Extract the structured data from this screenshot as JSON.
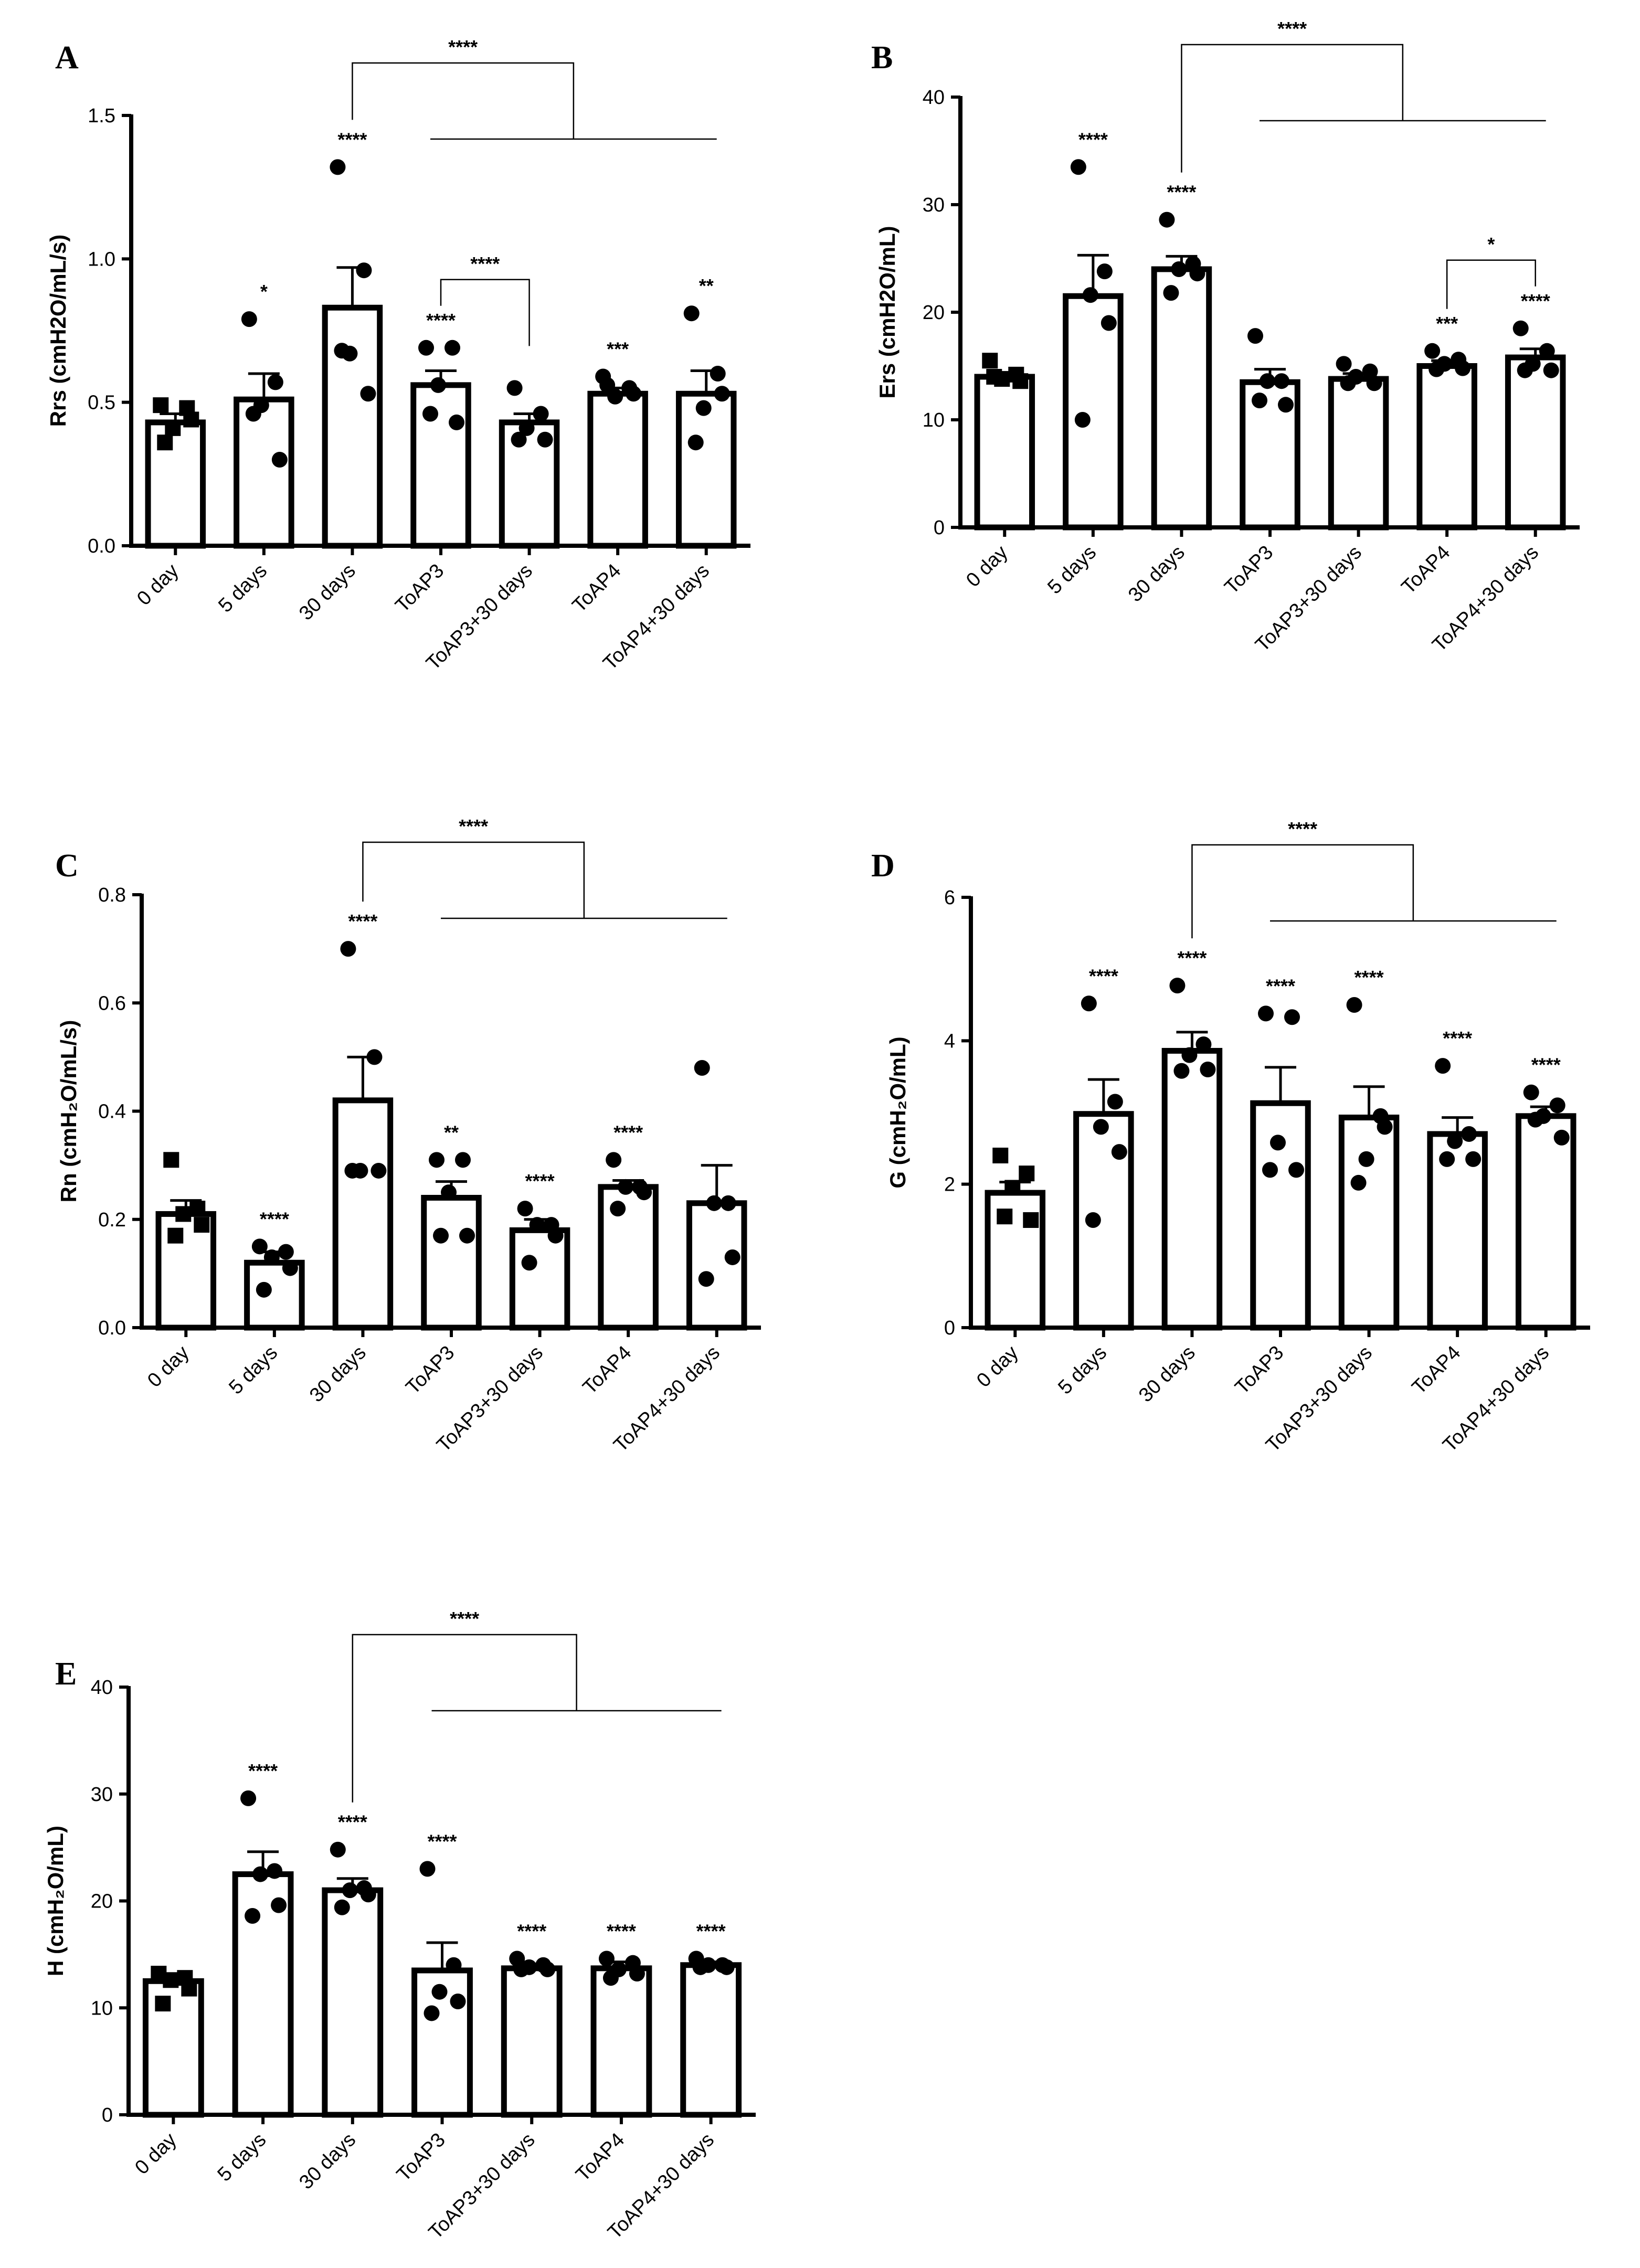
{
  "chart_data": [
    {
      "type": "bar",
      "panel": "A",
      "ylabel": "Rrs (cmH2O/mL/s)",
      "ylim": [
        0,
        1.5
      ],
      "yticks": [
        0.0,
        0.5,
        1.0,
        1.5
      ],
      "ytick_labels": [
        "0.0",
        "0.5",
        "1.0",
        "1.5"
      ],
      "categories": [
        "0 day",
        "5 days",
        "30 days",
        "ToAP3",
        "ToAP3+30 days",
        "ToAP4",
        "ToAP4+30 days"
      ],
      "means": [
        0.43,
        0.51,
        0.83,
        0.56,
        0.43,
        0.53,
        0.53
      ],
      "sem": [
        0.03,
        0.09,
        0.14,
        0.05,
        0.03,
        0.02,
        0.08
      ],
      "points": [
        [
          0.49,
          0.48,
          0.41,
          0.44,
          0.36
        ],
        [
          0.79,
          0.57,
          0.49,
          0.3,
          0.46
        ],
        [
          1.32,
          0.96,
          0.67,
          0.53,
          0.68
        ],
        [
          0.69,
          0.69,
          0.56,
          0.43,
          0.46
        ],
        [
          0.55,
          0.46,
          0.41,
          0.37,
          0.37
        ],
        [
          0.59,
          0.55,
          0.52,
          0.53,
          0.56
        ],
        [
          0.81,
          0.6,
          0.48,
          0.53,
          0.36
        ]
      ],
      "marker": "square-first",
      "sig_labels": [
        "",
        "*",
        "****",
        "****",
        "",
        "***",
        "**"
      ],
      "brackets": [
        {
          "label": "****",
          "from": 3,
          "to": 4
        },
        {
          "label": "****",
          "from": 2,
          "to": [
            3,
            6
          ],
          "type": "group"
        }
      ]
    },
    {
      "type": "bar",
      "panel": "B",
      "ylabel": "Ers (cmH2O/mL)",
      "ylim": [
        0,
        40
      ],
      "yticks": [
        0,
        10,
        20,
        30,
        40
      ],
      "ytick_labels": [
        "0",
        "10",
        "20",
        "30",
        "40"
      ],
      "categories": [
        "0 day",
        "5 days",
        "30 days",
        "ToAP3",
        "ToAP3+30 days",
        "ToAP4",
        "ToAP4+30 days"
      ],
      "means": [
        14.0,
        21.5,
        24.0,
        13.5,
        13.8,
        15.0,
        15.8
      ],
      "sem": [
        0.4,
        3.8,
        1.2,
        1.2,
        0.5,
        0.5,
        0.8
      ],
      "points": [
        [
          15.5,
          14.2,
          13.8,
          13.6,
          14.0
        ],
        [
          33.5,
          23.8,
          21.6,
          19.0,
          10.0
        ],
        [
          28.6,
          24.5,
          24.0,
          23.6,
          21.8
        ],
        [
          17.8,
          13.6,
          13.6,
          11.4,
          11.8
        ],
        [
          15.2,
          14.5,
          14.0,
          13.4,
          13.4
        ],
        [
          16.4,
          15.6,
          15.2,
          14.8,
          14.7
        ],
        [
          18.5,
          16.4,
          15.2,
          14.6,
          14.6
        ]
      ],
      "marker": "square-first",
      "sig_labels": [
        "",
        "****",
        "****",
        "",
        "",
        "***",
        "****"
      ],
      "brackets": [
        {
          "label": "*",
          "from": 5,
          "to": 6
        },
        {
          "label": "****",
          "from": 2,
          "to": [
            3,
            6
          ],
          "type": "group"
        }
      ]
    },
    {
      "type": "bar",
      "panel": "C",
      "ylabel": "Rn (cmH₂O/mL/s)",
      "ylim": [
        0,
        0.8
      ],
      "yticks": [
        0.0,
        0.2,
        0.4,
        0.6,
        0.8
      ],
      "ytick_labels": [
        "0.0",
        "0.2",
        "0.4",
        "0.6",
        "0.8"
      ],
      "categories": [
        "0 day",
        "5 days",
        "30 days",
        "ToAP3",
        "ToAP3+30 days",
        "ToAP4",
        "ToAP4+30 days"
      ],
      "means": [
        0.21,
        0.12,
        0.42,
        0.24,
        0.18,
        0.26,
        0.23
      ],
      "sem": [
        0.025,
        0.02,
        0.08,
        0.03,
        0.02,
        0.012,
        0.07
      ],
      "points": [
        [
          0.31,
          0.22,
          0.21,
          0.19,
          0.17
        ],
        [
          0.15,
          0.14,
          0.13,
          0.11,
          0.07
        ],
        [
          0.7,
          0.5,
          0.29,
          0.29,
          0.29
        ],
        [
          0.31,
          0.31,
          0.25,
          0.17,
          0.17
        ],
        [
          0.22,
          0.19,
          0.19,
          0.17,
          0.12
        ],
        [
          0.31,
          0.26,
          0.26,
          0.25,
          0.22
        ],
        [
          0.48,
          0.23,
          0.23,
          0.13,
          0.09
        ]
      ],
      "marker": "square-first",
      "sig_labels": [
        "",
        "****",
        "****",
        "**",
        "****",
        "****",
        ""
      ],
      "brackets": [
        {
          "label": "****",
          "from": 2,
          "to": [
            3,
            6
          ],
          "type": "group"
        }
      ]
    },
    {
      "type": "bar",
      "panel": "D",
      "ylabel": "G (cmH₂O/mL)",
      "ylim": [
        0,
        6
      ],
      "yticks": [
        0,
        2,
        4,
        6
      ],
      "ytick_labels": [
        "0",
        "2",
        "4",
        "6"
      ],
      "categories": [
        "0 day",
        "5 days",
        "30 days",
        "ToAP3",
        "ToAP3+30 days",
        "ToAP4",
        "ToAP4+30 days"
      ],
      "means": [
        1.88,
        2.98,
        3.86,
        3.13,
        2.93,
        2.7,
        2.95
      ],
      "sem": [
        0.15,
        0.48,
        0.26,
        0.5,
        0.43,
        0.23,
        0.13
      ],
      "points": [
        [
          2.4,
          2.15,
          1.95,
          1.5,
          1.55
        ],
        [
          4.52,
          3.15,
          2.8,
          2.45,
          1.5
        ],
        [
          4.77,
          3.95,
          3.8,
          3.6,
          3.58
        ],
        [
          4.38,
          4.33,
          2.58,
          2.2,
          2.2
        ],
        [
          4.5,
          2.95,
          2.35,
          2.8,
          2.02
        ],
        [
          3.65,
          2.7,
          2.6,
          2.35,
          2.35
        ],
        [
          3.28,
          3.1,
          2.95,
          2.65,
          2.9
        ]
      ],
      "marker": "square-first",
      "sig_labels": [
        "",
        "****",
        "****",
        "****",
        "****",
        "****",
        "****"
      ],
      "brackets": [
        {
          "label": "****",
          "from": 2,
          "to": [
            3,
            6
          ],
          "type": "group"
        }
      ]
    },
    {
      "type": "bar",
      "panel": "E",
      "ylabel": "H (cmH₂O/mL)",
      "ylim": [
        0,
        40
      ],
      "yticks": [
        0,
        10,
        20,
        30,
        40
      ],
      "ytick_labels": [
        "0",
        "10",
        "20",
        "30",
        "40"
      ],
      "categories": [
        "0 day",
        "5 days",
        "30 days",
        "ToAP3",
        "ToAP3+30 days",
        "ToAP4",
        "ToAP4+30 days"
      ],
      "means": [
        12.5,
        22.5,
        21.0,
        13.5,
        13.7,
        13.7,
        14.0
      ],
      "sem": [
        0.6,
        2.1,
        1.1,
        2.6,
        0.4,
        0.6,
        0.3
      ],
      "points": [
        [
          13.2,
          12.8,
          12.6,
          11.8,
          10.4
        ],
        [
          29.6,
          22.8,
          22.5,
          19.6,
          18.6
        ],
        [
          24.8,
          21.2,
          21.0,
          20.6,
          19.4
        ],
        [
          23.0,
          14.0,
          11.5,
          10.6,
          9.5
        ],
        [
          14.6,
          14.0,
          13.8,
          13.6,
          13.6
        ],
        [
          14.6,
          14.2,
          13.6,
          13.2,
          12.8
        ],
        [
          14.6,
          14.0,
          14.0,
          13.8,
          13.8
        ]
      ],
      "marker": "square-first",
      "sig_labels": [
        "",
        "****",
        "****",
        "****",
        "****",
        "****",
        "****"
      ],
      "brackets": [
        {
          "label": "****",
          "from": 2,
          "to": [
            3,
            6
          ],
          "type": "group"
        }
      ]
    }
  ]
}
